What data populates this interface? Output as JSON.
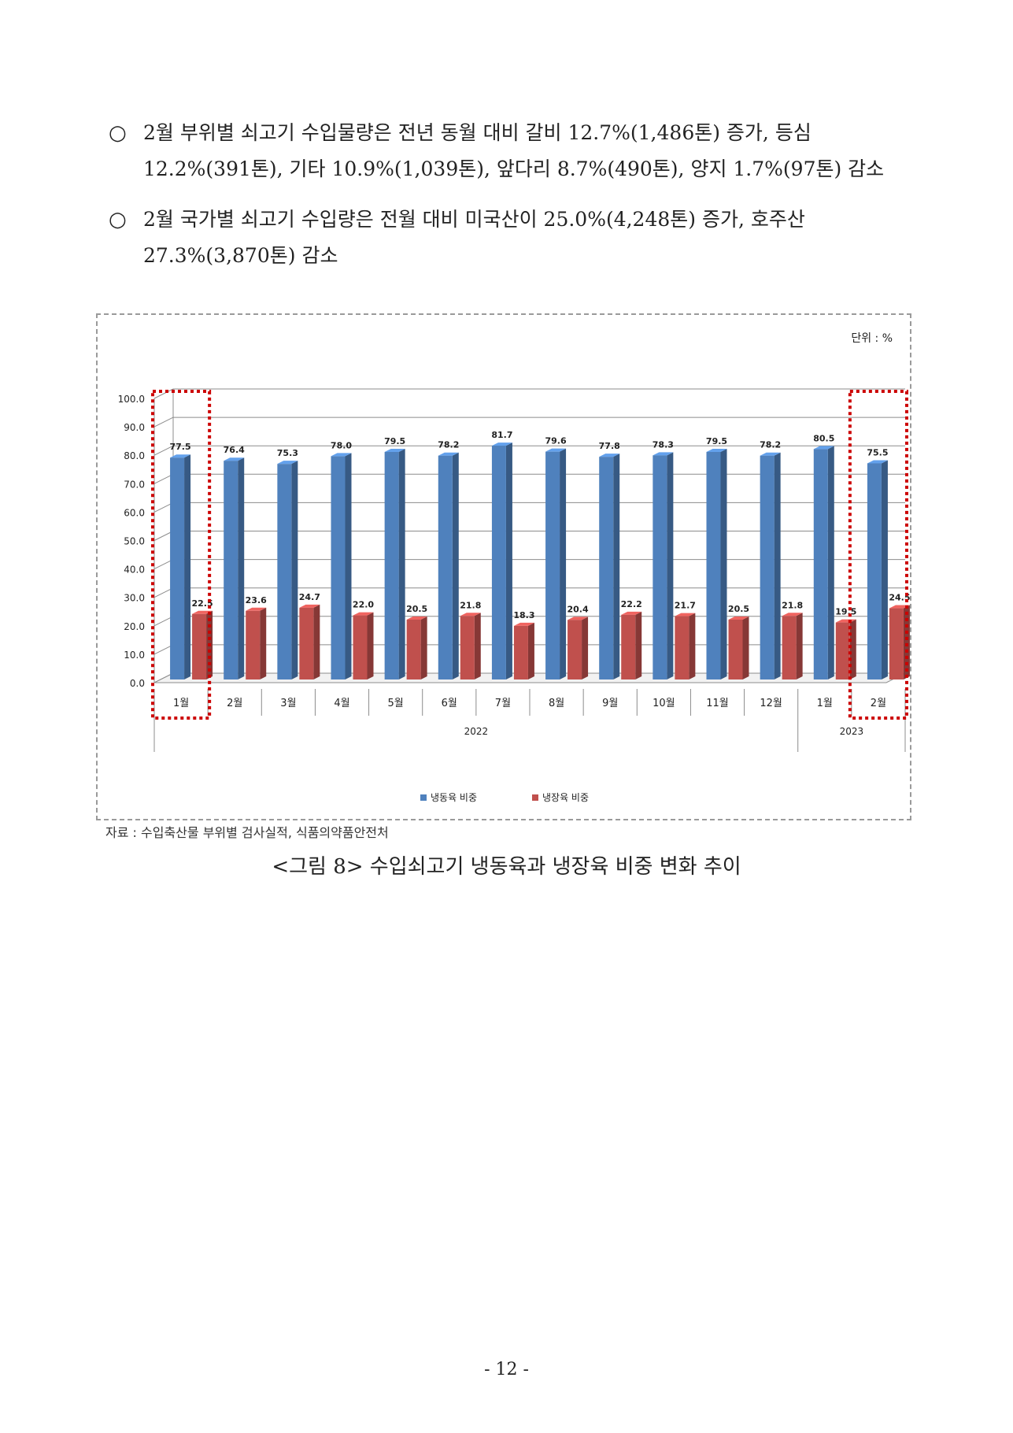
{
  "paragraphs": [
    {
      "bullet": "○",
      "line1": "2월 부위별 쇠고기 수입물량은 전년 동월 대비 갈비 12.7%(1,486톤) 증가, 등심",
      "line2": "12.2%(391톤), 기타 10.9%(1,039톤), 앞다리 8.7%(490톤), 양지 1.7%(97톤) 감소"
    },
    {
      "bullet": "○",
      "line1": "2월 국가별 쇠고기 수입량은 전월 대비 미국산이 25.0%(4,248톤) 증가, 호주산",
      "line2": "27.3%(3,870톤) 감소"
    }
  ],
  "chart_data": {
    "type": "bar",
    "unit_label": "단위 : %",
    "categories": [
      "1월",
      "2월",
      "3월",
      "4월",
      "5월",
      "6월",
      "7월",
      "8월",
      "9월",
      "10월",
      "11월",
      "12월",
      "1월",
      "2월"
    ],
    "year_groups": [
      {
        "label": "2022",
        "count": 12
      },
      {
        "label": "2023",
        "count": 2
      }
    ],
    "series": [
      {
        "name": "냉동육 비중",
        "color": "#4f81bd",
        "values": [
          77.5,
          76.4,
          75.3,
          78.0,
          79.5,
          78.2,
          81.7,
          79.6,
          77.8,
          78.3,
          79.5,
          78.2,
          80.5,
          75.5
        ]
      },
      {
        "name": "냉장육 비중",
        "color": "#c0504d",
        "values": [
          22.5,
          23.6,
          24.7,
          22.0,
          20.5,
          21.8,
          18.3,
          20.4,
          22.2,
          21.7,
          20.5,
          21.8,
          19.5,
          24.5
        ]
      }
    ],
    "ylim": [
      0,
      100
    ],
    "yticks": [
      "0.0",
      "10.0",
      "20.0",
      "30.0",
      "40.0",
      "50.0",
      "60.0",
      "70.0",
      "80.0",
      "90.0",
      "100.0"
    ],
    "grid": true,
    "legend_position": "bottom",
    "highlighted_categories": [
      0,
      13
    ],
    "highlight_color": "#cc0000"
  },
  "source": "자료 : 수입축산물 부위별 검사실적, 식품의약품안전처",
  "caption": "<그림 8> 수입쇠고기 냉동육과 냉장육 비중 변화 추이",
  "page_number": "- 12 -"
}
